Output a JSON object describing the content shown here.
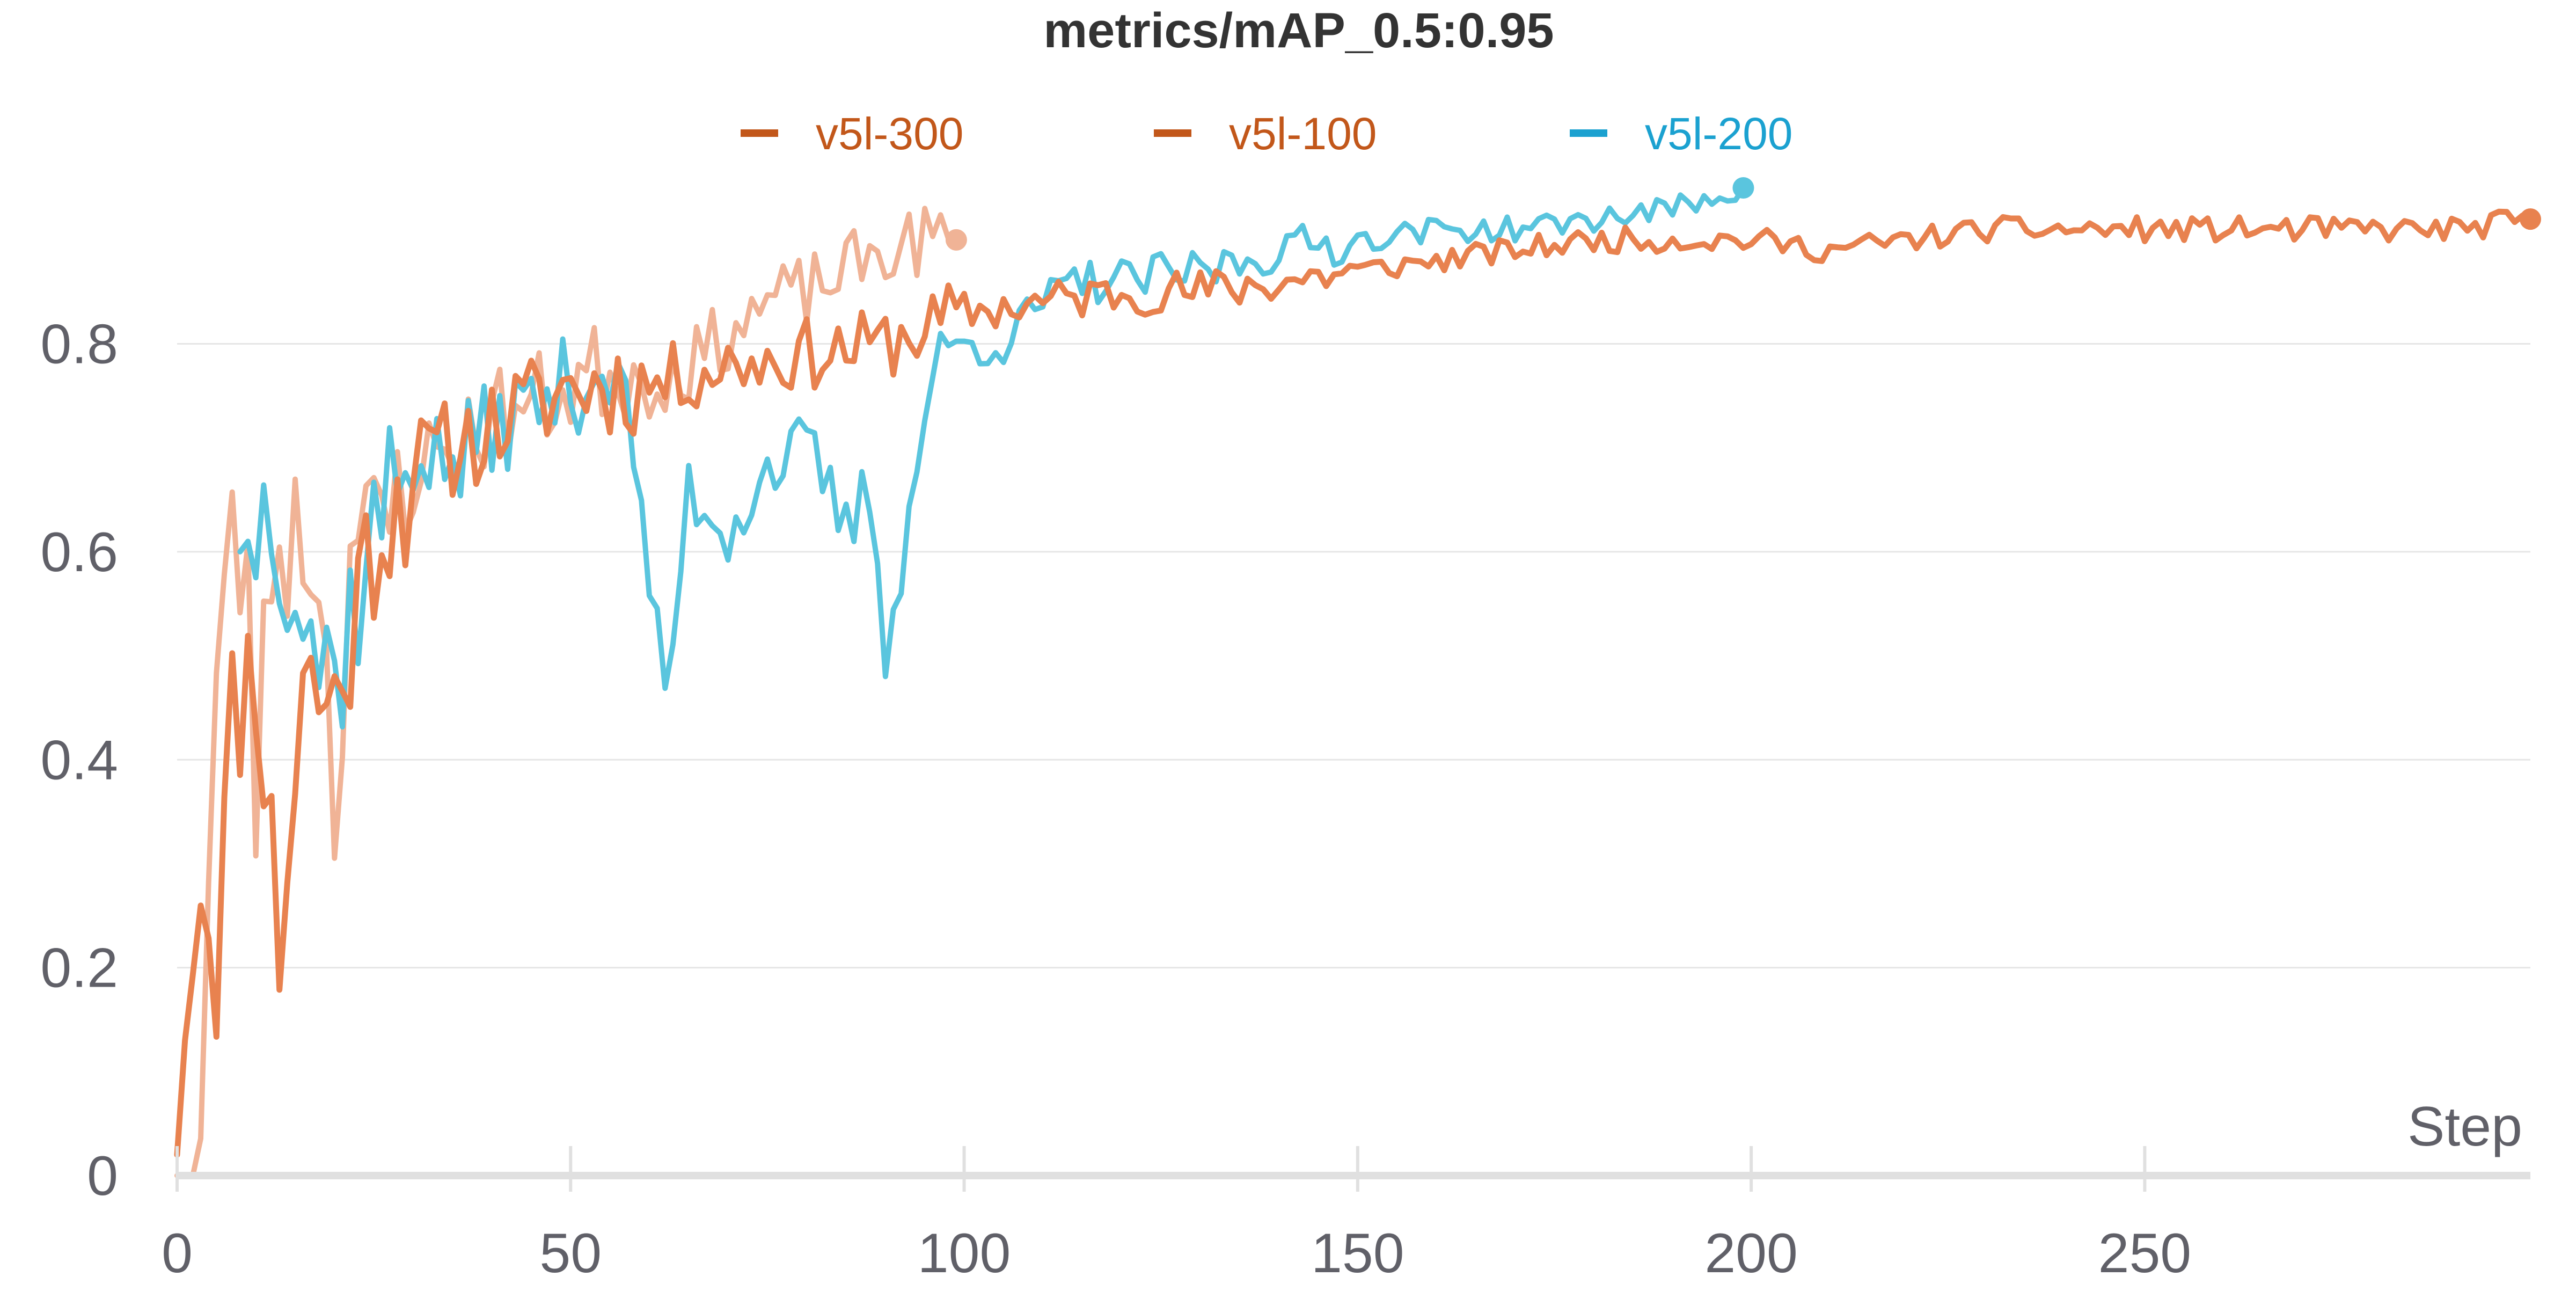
{
  "chart_data": {
    "type": "line",
    "title": "metrics/mAP_0.5:0.95",
    "xlabel": "Step",
    "ylabel": "",
    "xlim": [
      0,
      299
    ],
    "ylim": [
      0,
      0.95
    ],
    "x_ticks": [
      0,
      50,
      100,
      150,
      200,
      250
    ],
    "y_ticks": [
      0,
      0.2,
      0.4,
      0.6,
      0.8
    ],
    "y_tick_labels": [
      "0",
      "0.2",
      "0.4",
      "0.6",
      "0.8"
    ],
    "grid": true,
    "legend_position": "top-center",
    "series": [
      {
        "name": "v5l-300",
        "color": "#c2571a",
        "marker_color": "#e8824f",
        "x_end": 299,
        "anchors": [
          [
            0,
            0.02
          ],
          [
            2,
            0.24
          ],
          [
            3,
            0.3
          ],
          [
            5,
            0.21
          ],
          [
            7,
            0.44
          ],
          [
            10,
            0.5
          ],
          [
            13,
            0.22
          ],
          [
            16,
            0.48
          ],
          [
            20,
            0.45
          ],
          [
            25,
            0.62
          ],
          [
            30,
            0.68
          ],
          [
            40,
            0.72
          ],
          [
            50,
            0.76
          ],
          [
            60,
            0.76
          ],
          [
            70,
            0.78
          ],
          [
            80,
            0.79
          ],
          [
            90,
            0.8
          ],
          [
            100,
            0.83
          ],
          [
            110,
            0.84
          ],
          [
            120,
            0.85
          ],
          [
            130,
            0.85
          ],
          [
            140,
            0.86
          ],
          [
            150,
            0.87
          ],
          [
            160,
            0.88
          ],
          [
            170,
            0.89
          ],
          [
            180,
            0.9
          ],
          [
            190,
            0.9
          ],
          [
            200,
            0.9
          ],
          [
            210,
            0.89
          ],
          [
            220,
            0.9
          ],
          [
            230,
            0.91
          ],
          [
            240,
            0.91
          ],
          [
            250,
            0.91
          ],
          [
            260,
            0.91
          ],
          [
            270,
            0.91
          ],
          [
            280,
            0.91
          ],
          [
            290,
            0.91
          ],
          [
            299,
            0.92
          ]
        ]
      },
      {
        "name": "v5l-100",
        "color": "#c2571a",
        "marker_color": "#f0b396",
        "x_end": 99,
        "anchors": [
          [
            0,
            0.0
          ],
          [
            2,
            0.0
          ],
          [
            3,
            0.06
          ],
          [
            5,
            0.48
          ],
          [
            7,
            0.6
          ],
          [
            9,
            0.57
          ],
          [
            10,
            0.36
          ],
          [
            12,
            0.6
          ],
          [
            15,
            0.62
          ],
          [
            18,
            0.6
          ],
          [
            20,
            0.35
          ],
          [
            22,
            0.62
          ],
          [
            25,
            0.6
          ],
          [
            30,
            0.68
          ],
          [
            35,
            0.7
          ],
          [
            40,
            0.73
          ],
          [
            45,
            0.74
          ],
          [
            50,
            0.76
          ],
          [
            55,
            0.78
          ],
          [
            60,
            0.76
          ],
          [
            65,
            0.78
          ],
          [
            70,
            0.81
          ],
          [
            75,
            0.84
          ],
          [
            80,
            0.85
          ],
          [
            85,
            0.87
          ],
          [
            90,
            0.89
          ],
          [
            95,
            0.9
          ],
          [
            99,
            0.9
          ]
        ]
      },
      {
        "name": "v5l-200",
        "color": "#1ba1d0",
        "marker_color": "#5ac5de",
        "x_end": 199,
        "anchors": [
          [
            8,
            0.6
          ],
          [
            10,
            0.62
          ],
          [
            12,
            0.66
          ],
          [
            15,
            0.58
          ],
          [
            18,
            0.5
          ],
          [
            20,
            0.48
          ],
          [
            25,
            0.62
          ],
          [
            30,
            0.7
          ],
          [
            35,
            0.68
          ],
          [
            40,
            0.72
          ],
          [
            45,
            0.74
          ],
          [
            50,
            0.76
          ],
          [
            55,
            0.78
          ],
          [
            58,
            0.7
          ],
          [
            62,
            0.45
          ],
          [
            65,
            0.66
          ],
          [
            70,
            0.62
          ],
          [
            75,
            0.68
          ],
          [
            80,
            0.7
          ],
          [
            85,
            0.62
          ],
          [
            88,
            0.66
          ],
          [
            90,
            0.51
          ],
          [
            93,
            0.63
          ],
          [
            96,
            0.78
          ],
          [
            100,
            0.8
          ],
          [
            105,
            0.8
          ],
          [
            110,
            0.84
          ],
          [
            115,
            0.86
          ],
          [
            120,
            0.86
          ],
          [
            130,
            0.87
          ],
          [
            140,
            0.89
          ],
          [
            150,
            0.9
          ],
          [
            160,
            0.91
          ],
          [
            170,
            0.91
          ],
          [
            180,
            0.92
          ],
          [
            190,
            0.93
          ],
          [
            199,
            0.95
          ]
        ]
      }
    ]
  }
}
